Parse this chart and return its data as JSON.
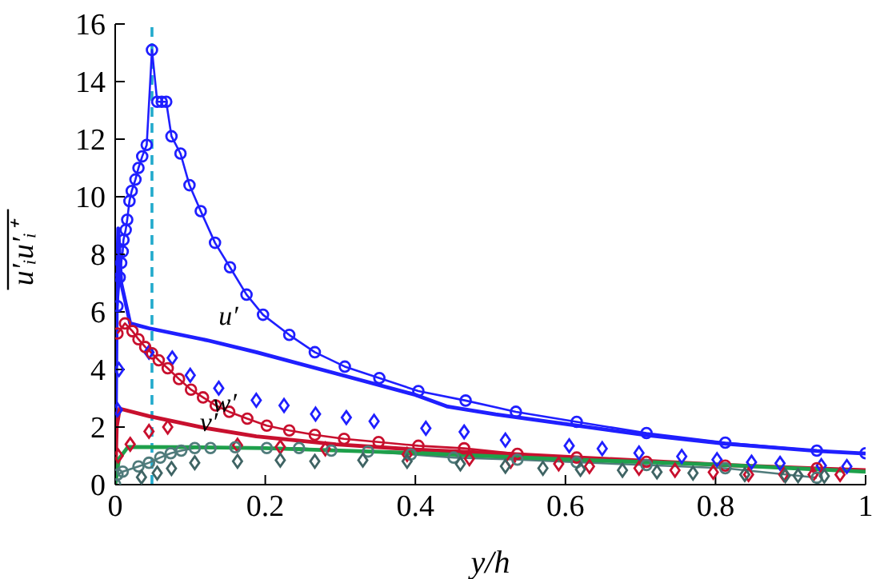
{
  "chart_data": {
    "type": "line",
    "xlabel": "y/h",
    "ylabel": "u′ᵢu′ᵢ⁺",
    "xlim": [
      0,
      1
    ],
    "xticks": [
      0,
      0.2,
      0.4,
      0.6,
      0.8,
      1
    ],
    "ylim": [
      0,
      16
    ],
    "yticks": [
      0,
      2,
      4,
      6,
      8,
      10,
      12,
      14,
      16
    ],
    "grid": false,
    "legend": false,
    "series": [
      {
        "marker": "circle",
        "color": "#1f1fff",
        "x": [
          0.003,
          0.006,
          0.008,
          0.01,
          0.011,
          0.014,
          0.016,
          0.019,
          0.022,
          0.027,
          0.031,
          0.036,
          0.042,
          0.049,
          0.056,
          0.062,
          0.068,
          0.075,
          0.087,
          0.099,
          0.114,
          0.133,
          0.153,
          0.175,
          0.197,
          0.232,
          0.266,
          0.306,
          0.352,
          0.404,
          0.467,
          0.534,
          0.615,
          0.708,
          0.813,
          0.935,
          1
        ],
        "values": [
          6.2,
          7.2,
          7.7,
          8.1,
          8.5,
          8.85,
          9.2,
          9.85,
          10.2,
          10.6,
          11.0,
          11.4,
          11.8,
          15.1,
          13.3,
          13.3,
          13.3,
          12.1,
          11.5,
          10.4,
          9.5,
          8.4,
          7.55,
          6.6,
          5.9,
          5.2,
          4.6,
          4.1,
          3.7,
          3.25,
          2.92,
          2.53,
          2.18,
          1.79,
          1.46,
          1.18,
          1.09
        ]
      },
      {
        "name": "u′",
        "marker": "none",
        "color": "#1f1fff",
        "x": [
          0,
          0.002,
          0.004,
          0.008,
          0.02,
          0.045,
          0.125,
          0.188,
          0.294,
          0.4,
          0.443,
          0.507,
          0.615,
          0.708,
          0.813,
          0.935,
          1
        ],
        "values": [
          0,
          6,
          8.9,
          7,
          5.6,
          5.43,
          5.0,
          4.6,
          3.86,
          3.12,
          2.71,
          2.44,
          2.05,
          1.72,
          1.42,
          1.17,
          1.08
        ]
      },
      {
        "type": "scatter",
        "marker": "diamond",
        "color": "#1f1fff",
        "x": [
          0.003,
          0.005,
          0.045,
          0.076,
          0.1,
          0.138,
          0.188,
          0.225,
          0.267,
          0.308,
          0.345,
          0.414,
          0.465,
          0.52,
          0.605,
          0.649,
          0.698,
          0.755,
          0.802,
          0.848,
          0.886,
          0.941,
          0.975
        ],
        "values": [
          2.6,
          4.0,
          4.6,
          4.4,
          3.8,
          3.35,
          2.93,
          2.75,
          2.45,
          2.33,
          2.2,
          1.96,
          1.83,
          1.55,
          1.35,
          1.25,
          1.1,
          0.98,
          0.87,
          0.78,
          0.74,
          0.66,
          0.63
        ]
      },
      {
        "marker": "circle",
        "color": "#c8102e",
        "x": [
          0.003,
          0.013,
          0.023,
          0.031,
          0.04,
          0.049,
          0.058,
          0.07,
          0.085,
          0.101,
          0.117,
          0.134,
          0.152,
          0.176,
          0.202,
          0.232,
          0.266,
          0.305,
          0.351,
          0.404,
          0.465,
          0.536,
          0.615,
          0.708,
          0.813,
          0.935
        ],
        "values": [
          5.25,
          5.6,
          5.33,
          5.05,
          4.78,
          4.56,
          4.32,
          4.04,
          3.67,
          3.3,
          3.03,
          2.75,
          2.53,
          2.29,
          2.05,
          1.88,
          1.73,
          1.59,
          1.48,
          1.35,
          1.26,
          1.07,
          0.94,
          0.79,
          0.66,
          0.57
        ]
      },
      {
        "name": "w′",
        "marker": "none",
        "color": "#c8102e",
        "x": [
          0,
          0.002,
          0.006,
          0.045,
          0.117,
          0.188,
          0.294,
          0.4,
          0.507,
          0.615,
          0.813,
          1
        ],
        "values": [
          0,
          2.0,
          2.64,
          2.38,
          1.98,
          1.68,
          1.4,
          1.22,
          1.09,
          0.95,
          0.68,
          0.5
        ]
      },
      {
        "type": "scatter",
        "marker": "diamond",
        "color": "#c8102e",
        "x": [
          0.004,
          0.02,
          0.045,
          0.07,
          0.163,
          0.22,
          0.28,
          0.389,
          0.472,
          0.527,
          0.591,
          0.632,
          0.698,
          0.746,
          0.797,
          0.844,
          0.891,
          0.93,
          0.966
        ],
        "values": [
          1.0,
          1.4,
          1.85,
          2.0,
          1.37,
          1.31,
          1.24,
          1.05,
          0.9,
          0.81,
          0.72,
          0.63,
          0.57,
          0.5,
          0.43,
          0.35,
          0.35,
          0.35,
          0.35
        ]
      },
      {
        "marker": "circle",
        "color": "#4f7b7b",
        "x": [
          0,
          0.003,
          0.01,
          0.031,
          0.045,
          0.06,
          0.074,
          0.088,
          0.106,
          0.127,
          0.16,
          0.202,
          0.245,
          0.288,
          0.337,
          0.394,
          0.451,
          0.536,
          0.615,
          0.708,
          0.813,
          0.935
        ],
        "values": [
          0,
          0.35,
          0.45,
          0.63,
          0.76,
          0.94,
          1.09,
          1.18,
          1.27,
          1.27,
          1.3,
          1.27,
          1.27,
          1.18,
          1.15,
          1.05,
          0.94,
          0.87,
          0.78,
          0.68,
          0.57,
          0.24
        ]
      },
      {
        "name": "v′",
        "marker": "none",
        "color": "#1ea04b",
        "x": [
          0,
          0.005,
          0.017,
          0.1,
          0.2,
          0.4,
          0.6,
          0.8,
          1
        ],
        "values": [
          0,
          0.9,
          1.31,
          1.3,
          1.27,
          1.1,
          0.88,
          0.7,
          0.45
        ]
      },
      {
        "type": "scatter",
        "marker": "diamond",
        "color": "#3f6464",
        "x": [
          0.035,
          0.056,
          0.075,
          0.106,
          0.163,
          0.22,
          0.266,
          0.33,
          0.389,
          0.46,
          0.52,
          0.57,
          0.62,
          0.676,
          0.722,
          0.77,
          0.839,
          0.893,
          0.91,
          0.945
        ],
        "values": [
          0.26,
          0.4,
          0.56,
          0.76,
          0.81,
          0.85,
          0.81,
          0.85,
          0.81,
          0.72,
          0.64,
          0.57,
          0.53,
          0.5,
          0.44,
          0.4,
          0.35,
          0.31,
          0.31,
          0.3
        ]
      }
    ],
    "ref_lines": [
      {
        "axis": "x",
        "value": 0.049,
        "color": "#22aacc",
        "line_style": "dashed"
      }
    ]
  }
}
